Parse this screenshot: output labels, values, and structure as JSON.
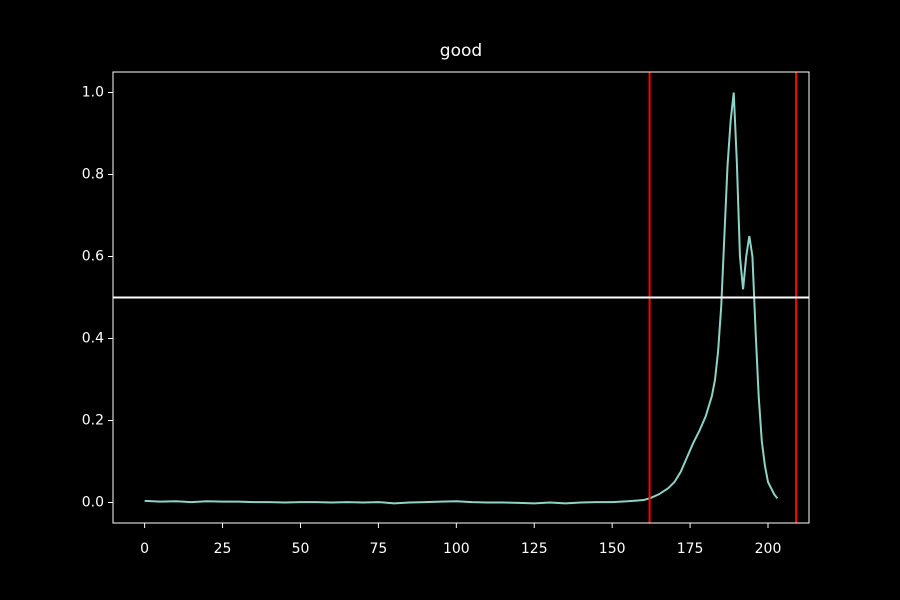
{
  "chart_data": {
    "type": "line",
    "title": "good",
    "x": [
      0,
      5,
      10,
      15,
      20,
      25,
      30,
      35,
      40,
      45,
      50,
      55,
      60,
      65,
      70,
      75,
      80,
      85,
      90,
      95,
      100,
      105,
      110,
      115,
      120,
      125,
      130,
      135,
      140,
      145,
      150,
      155,
      160,
      162,
      165,
      168,
      170,
      172,
      174,
      176,
      178,
      180,
      182,
      183,
      184,
      185,
      186,
      187,
      188,
      189,
      190,
      191,
      192,
      193,
      194,
      195,
      196,
      197,
      198,
      199,
      200,
      201,
      202,
      203
    ],
    "series": [
      {
        "color": "#8dd3c7",
        "values": [
          0.004,
          0.002,
          0.003,
          0.001,
          0.003,
          0.002,
          0.002,
          0.001,
          0.001,
          0.0,
          0.001,
          0.001,
          0.0,
          0.001,
          0.0,
          0.001,
          -0.002,
          0.0,
          0.001,
          0.002,
          0.003,
          0.001,
          0.0,
          0.0,
          -0.001,
          -0.002,
          0.0,
          -0.002,
          0.0,
          0.001,
          0.001,
          0.003,
          0.006,
          0.01,
          0.02,
          0.035,
          0.05,
          0.075,
          0.11,
          0.145,
          0.175,
          0.21,
          0.26,
          0.3,
          0.37,
          0.48,
          0.65,
          0.82,
          0.93,
          1.0,
          0.83,
          0.6,
          0.52,
          0.6,
          0.65,
          0.6,
          0.42,
          0.26,
          0.15,
          0.09,
          0.05,
          0.035,
          0.02,
          0.01
        ]
      }
    ],
    "xlim": [
      -10.15,
      213.15
    ],
    "ylim": [
      -0.05,
      1.05
    ],
    "xticks": [
      0,
      25,
      50,
      75,
      100,
      125,
      150,
      175,
      200
    ],
    "yticks": [
      {
        "value": 0,
        "label": "0.0"
      },
      0.2,
      0.4,
      0.6,
      0.8,
      {
        "value": 1,
        "label": "1.0"
      }
    ],
    "vlines": {
      "color": "#ff0000",
      "values": [
        162,
        209
      ]
    },
    "hline": {
      "color": "#ffffff",
      "value": 0.5
    }
  }
}
